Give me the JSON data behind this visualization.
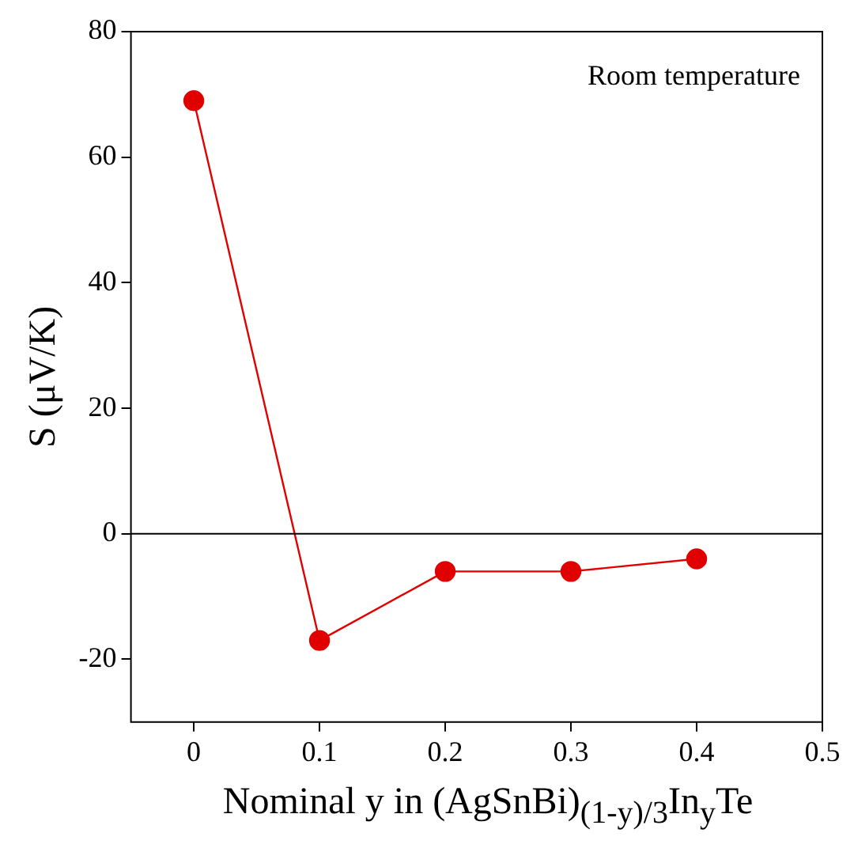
{
  "chart_data": {
    "type": "line",
    "xlabel": "Nominal y in (AgSnBi)$_{(1-y)/3}$In$_{y}$Te",
    "ylabel": "S (μV/K)",
    "x": [
      0,
      0.1,
      0.2,
      0.3,
      0.4
    ],
    "series": [
      {
        "color": "#e00000",
        "values": [
          69,
          -17,
          -6,
          -6,
          -4
        ]
      }
    ],
    "xlim": [
      -0.05,
      0.5
    ],
    "xticks": [
      0,
      0.1,
      0.2,
      0.3,
      0.4,
      0.5
    ],
    "ylim": [
      -30,
      80
    ],
    "yticks": [
      -20,
      0,
      20,
      40,
      60,
      80
    ],
    "ref_lines": [
      {
        "axis": "y",
        "value": 0,
        "color": "#000000"
      }
    ],
    "annotations": [
      "Room temperature"
    ],
    "grid": false,
    "legend": false,
    "marker": "circle",
    "line_style": "solid"
  }
}
